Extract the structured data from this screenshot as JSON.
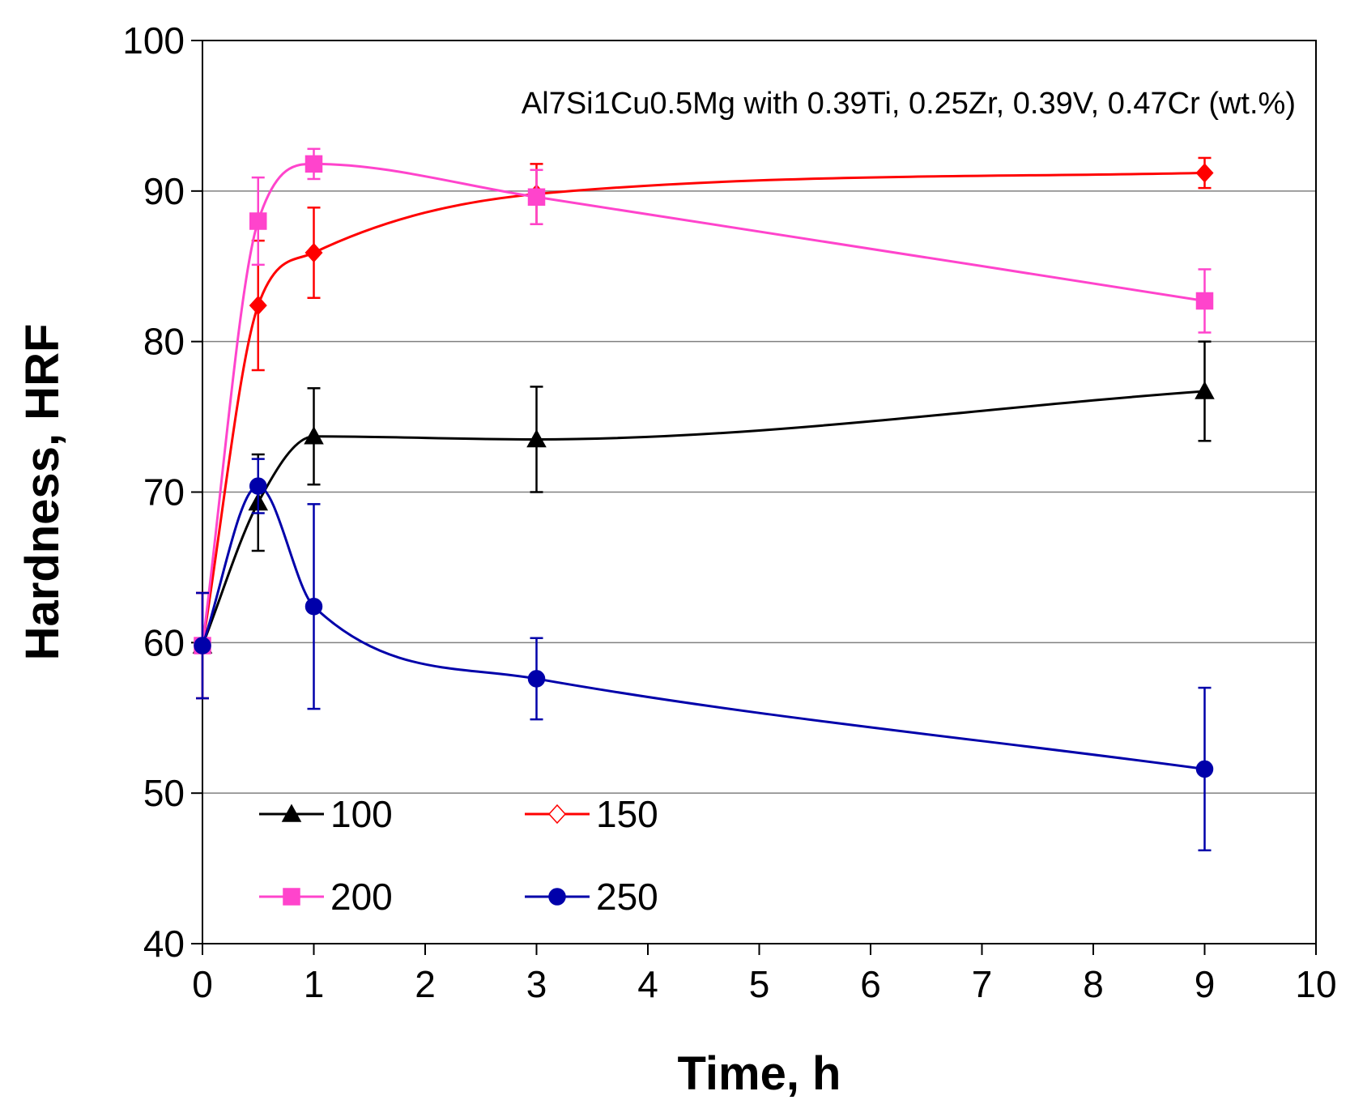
{
  "chart_data": {
    "type": "line",
    "title": "",
    "annotation": "Al7Si1Cu0.5Mg  with  0.39Ti, 0.25Zr, 0.39V, 0.47Cr (wt.%)",
    "xlabel": "Time, h",
    "ylabel": "Hardness, HRF",
    "xlim": [
      0,
      10
    ],
    "ylim": [
      40,
      100
    ],
    "xticks": [
      0,
      1,
      2,
      3,
      4,
      5,
      6,
      7,
      8,
      9,
      10
    ],
    "yticks": [
      40,
      50,
      60,
      70,
      80,
      90,
      100
    ],
    "grid": "horizontal",
    "legend_position": "bottom-left",
    "series": [
      {
        "name": "100",
        "color": "#000000",
        "marker": "triangle",
        "x": [
          0,
          0.5,
          1,
          3,
          9
        ],
        "y": [
          59.8,
          69.3,
          73.7,
          73.5,
          76.7
        ],
        "err": [
          3.5,
          3.2,
          3.2,
          3.5,
          3.3
        ]
      },
      {
        "name": "150",
        "color": "#ff0000",
        "marker": "diamond",
        "x": [
          0,
          0.5,
          1,
          3,
          9
        ],
        "y": [
          59.8,
          82.4,
          85.9,
          89.8,
          91.2
        ],
        "err": [
          3.5,
          4.3,
          3.0,
          2.0,
          1.0
        ]
      },
      {
        "name": "200",
        "color": "#ff44cc",
        "marker": "square",
        "x": [
          0,
          0.5,
          1,
          3,
          9
        ],
        "y": [
          59.8,
          88.0,
          91.8,
          89.6,
          82.7
        ],
        "err": [
          3.5,
          2.9,
          1.0,
          1.8,
          2.1
        ]
      },
      {
        "name": "250",
        "color": "#0000aa",
        "marker": "circle",
        "x": [
          0,
          0.5,
          1,
          3,
          9
        ],
        "y": [
          59.8,
          70.4,
          62.4,
          57.6,
          51.6
        ],
        "err": [
          3.5,
          1.8,
          6.8,
          2.7,
          5.4
        ]
      }
    ]
  }
}
